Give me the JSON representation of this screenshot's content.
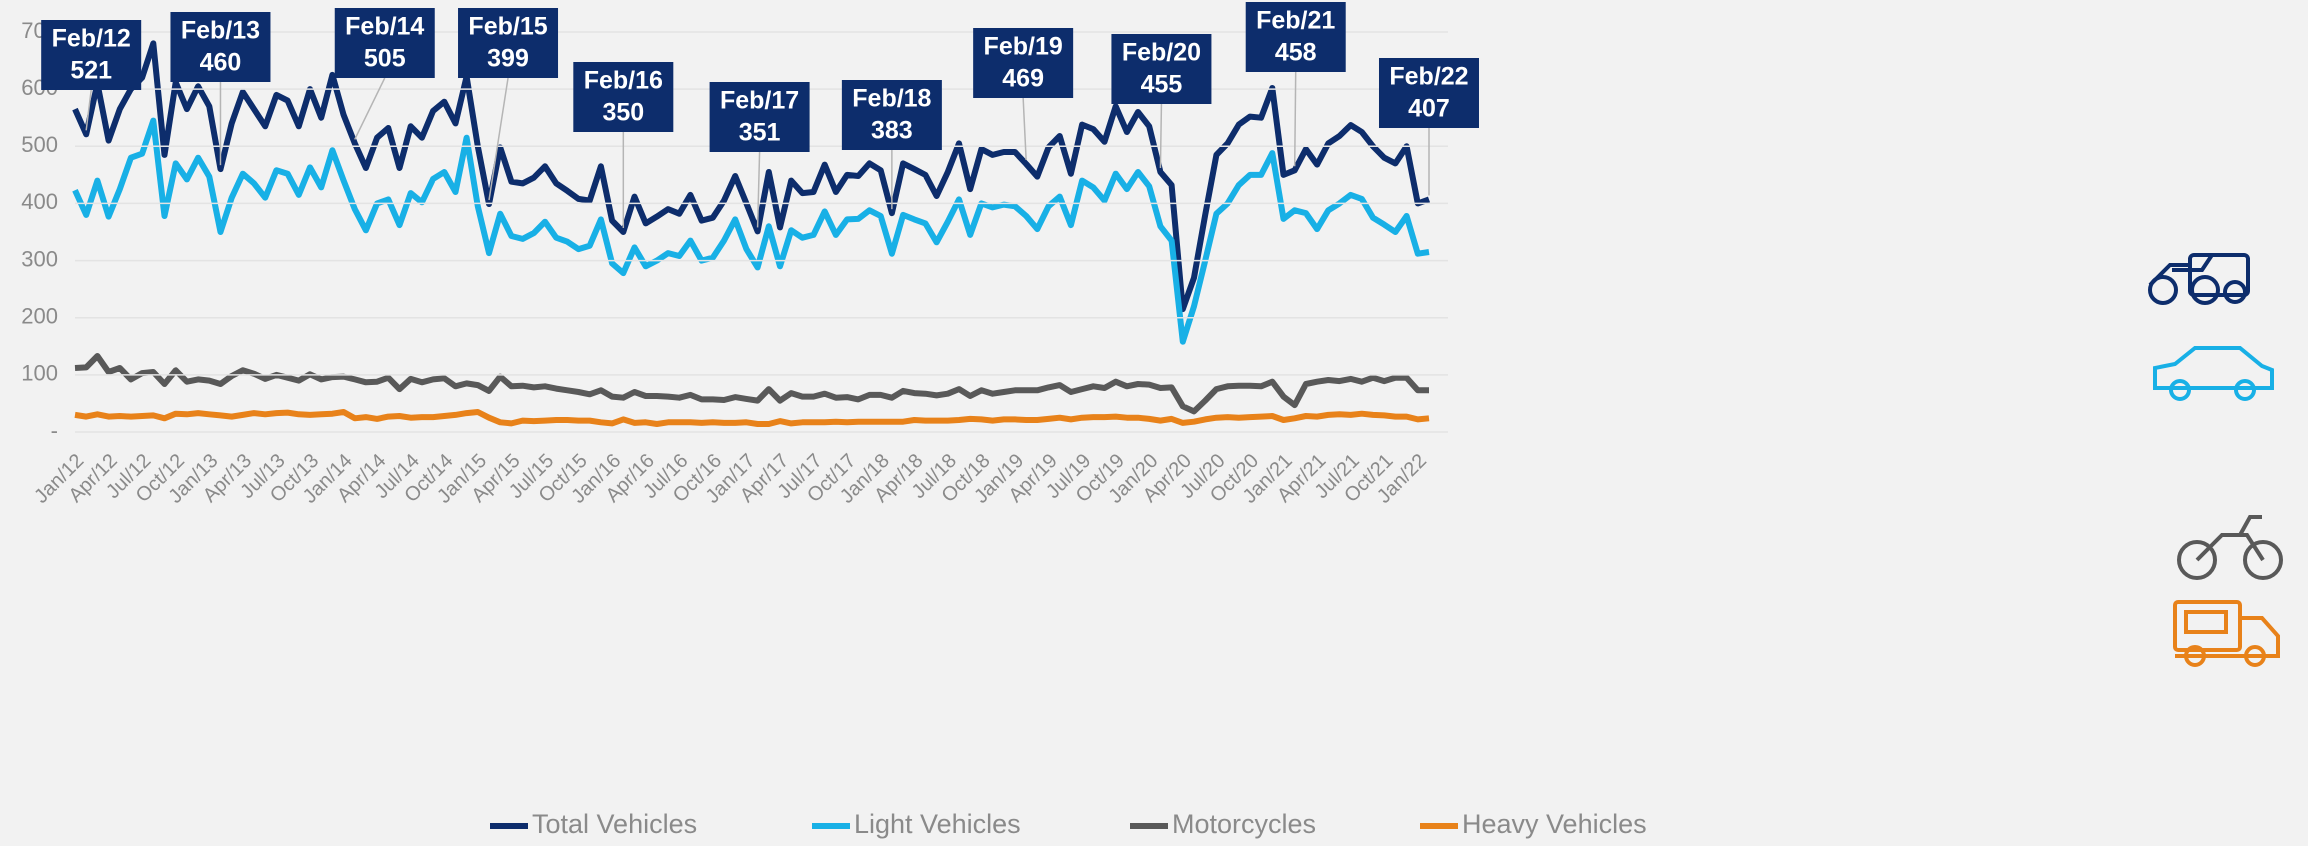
{
  "chart_data": {
    "type": "line",
    "categories": [
      "Jan/12",
      "Feb/12",
      null,
      "Apr/12",
      null,
      null,
      "Jul/12",
      null,
      null,
      "Oct/12",
      null,
      null,
      "Jan/13",
      "Feb/13",
      null,
      "Apr/13",
      null,
      null,
      "Jul/13",
      null,
      null,
      "Oct/13",
      null,
      null,
      "Jan/14",
      "Feb/14",
      null,
      "Apr/14",
      null,
      null,
      "Jul/14",
      null,
      null,
      "Oct/14",
      null,
      null,
      "Jan/15",
      "Feb/15",
      null,
      "Apr/15",
      null,
      null,
      "Jul/15",
      null,
      null,
      "Oct/15",
      null,
      null,
      "Jan/16",
      "Feb/16",
      null,
      "Apr/16",
      null,
      null,
      "Jul/16",
      null,
      null,
      "Oct/16",
      null,
      null,
      "Jan/17",
      "Feb/17",
      null,
      "Apr/17",
      null,
      null,
      "Jul/17",
      null,
      null,
      "Oct/17",
      null,
      null,
      "Jan/18",
      "Feb/18",
      null,
      "Apr/18",
      null,
      null,
      "Jul/18",
      null,
      null,
      "Oct/18",
      null,
      null,
      "Jan/19",
      "Feb/19",
      null,
      "Apr/19",
      null,
      null,
      "Jul/19",
      null,
      null,
      "Oct/19",
      null,
      null,
      "Jan/20",
      "Feb/20",
      null,
      "Apr/20",
      null,
      null,
      "Jul/20",
      null,
      null,
      "Oct/20",
      null,
      null,
      "Jan/21",
      "Feb/21",
      null,
      "Apr/21",
      null,
      null,
      "Jul/21",
      null,
      null,
      "Oct/21",
      null,
      null,
      "Jan/22",
      "Feb/22"
    ],
    "series": [
      {
        "name": "Total Vehicles",
        "color": "#0d2d6c",
        "values": [
          565,
          521,
          610,
          510,
          565,
          600,
          620,
          680,
          485,
          612,
          565,
          605,
          570,
          460,
          540,
          595,
          565,
          535,
          590,
          580,
          535,
          600,
          550,
          625,
          555,
          505,
          462,
          515,
          532,
          462,
          535,
          515,
          562,
          578,
          540,
          622,
          500,
          399,
          498,
          438,
          435,
          445,
          465,
          435,
          422,
          408,
          405,
          465,
          370,
          350,
          412,
          365,
          377,
          390,
          382,
          415,
          370,
          375,
          405,
          448,
          400,
          351,
          455,
          358,
          440,
          418,
          420,
          468,
          420,
          450,
          448,
          470,
          458,
          383,
          470,
          460,
          450,
          413,
          455,
          505,
          425,
          495,
          485,
          490,
          490,
          469,
          447,
          498,
          518,
          452,
          538,
          530,
          508,
          570,
          525,
          560,
          535,
          455,
          432,
          215,
          270,
          380,
          485,
          505,
          538,
          552,
          550,
          602,
          450,
          458,
          495,
          468,
          505,
          518,
          537,
          525,
          500,
          480,
          470,
          500,
          400,
          407
        ]
      },
      {
        "name": "Light Vehicles",
        "color": "#18b0e6",
        "values": [
          423,
          380,
          440,
          377,
          425,
          480,
          487,
          545,
          378,
          470,
          442,
          480,
          447,
          350,
          410,
          452,
          435,
          410,
          458,
          452,
          415,
          463,
          428,
          493,
          440,
          390,
          353,
          400,
          407,
          362,
          418,
          402,
          443,
          455,
          420,
          515,
          395,
          313,
          382,
          343,
          338,
          348,
          368,
          340,
          333,
          320,
          326,
          372,
          295,
          278,
          323,
          290,
          300,
          313,
          308,
          335,
          300,
          305,
          335,
          372,
          320,
          288,
          360,
          290,
          353,
          340,
          345,
          386,
          345,
          372,
          373,
          388,
          378,
          312,
          380,
          372,
          365,
          332,
          368,
          407,
          345,
          400,
          393,
          398,
          395,
          378,
          355,
          395,
          412,
          362,
          440,
          428,
          405,
          452,
          425,
          455,
          430,
          360,
          335,
          158,
          220,
          300,
          382,
          400,
          432,
          450,
          450,
          488,
          373,
          388,
          383,
          355,
          388,
          400,
          415,
          408,
          375,
          363,
          350,
          378,
          312,
          315
        ]
      },
      {
        "name": "Motorcycles",
        "color": "#595959",
        "values": [
          112,
          113,
          133,
          105,
          112,
          92,
          103,
          105,
          84,
          108,
          88,
          92,
          90,
          84,
          98,
          108,
          102,
          93,
          100,
          95,
          90,
          101,
          92,
          96,
          97,
          92,
          87,
          88,
          95,
          75,
          93,
          87,
          92,
          94,
          80,
          85,
          82,
          72,
          97,
          80,
          81,
          78,
          80,
          76,
          73,
          70,
          66,
          73,
          62,
          60,
          70,
          63,
          63,
          62,
          60,
          65,
          57,
          57,
          56,
          61,
          58,
          55,
          75,
          55,
          68,
          62,
          62,
          67,
          60,
          61,
          57,
          65,
          65,
          60,
          72,
          68,
          67,
          64,
          67,
          75,
          63,
          73,
          67,
          70,
          73,
          73,
          73,
          78,
          82,
          70,
          75,
          80,
          77,
          88,
          80,
          84,
          83,
          77,
          78,
          45,
          36,
          55,
          75,
          80,
          81,
          81,
          80,
          88,
          62,
          47,
          84,
          88,
          91,
          89,
          93,
          88,
          95,
          89,
          95,
          95,
          73,
          73
        ]
      },
      {
        "name": "Heavy Vehicles",
        "color": "#e8821a",
        "values": [
          30,
          27,
          31,
          27,
          28,
          27,
          28,
          29,
          24,
          32,
          31,
          33,
          31,
          29,
          27,
          30,
          33,
          31,
          33,
          34,
          31,
          30,
          31,
          32,
          35,
          24,
          26,
          23,
          27,
          28,
          25,
          26,
          26,
          28,
          30,
          33,
          35,
          25,
          17,
          15,
          20,
          19,
          20,
          21,
          21,
          20,
          20,
          17,
          15,
          22,
          16,
          17,
          14,
          17,
          17,
          17,
          16,
          17,
          16,
          16,
          17,
          14,
          14,
          19,
          15,
          17,
          17,
          17,
          18,
          17,
          18,
          18,
          18,
          18,
          18,
          21,
          20,
          20,
          20,
          21,
          23,
          22,
          20,
          22,
          22,
          21,
          21,
          23,
          25,
          22,
          25,
          26,
          26,
          27,
          25,
          25,
          23,
          20,
          23,
          16,
          18,
          22,
          25,
          26,
          25,
          26,
          27,
          28,
          21,
          24,
          28,
          27,
          30,
          31,
          30,
          32,
          30,
          29,
          27,
          27,
          22,
          24
        ]
      }
    ],
    "ylim": [
      0,
      700
    ],
    "yticks": [
      {
        "value": 0,
        "label": "-"
      },
      100,
      200,
      300,
      400,
      500,
      600,
      700
    ],
    "grid": true,
    "legend": "bottom"
  }
}
